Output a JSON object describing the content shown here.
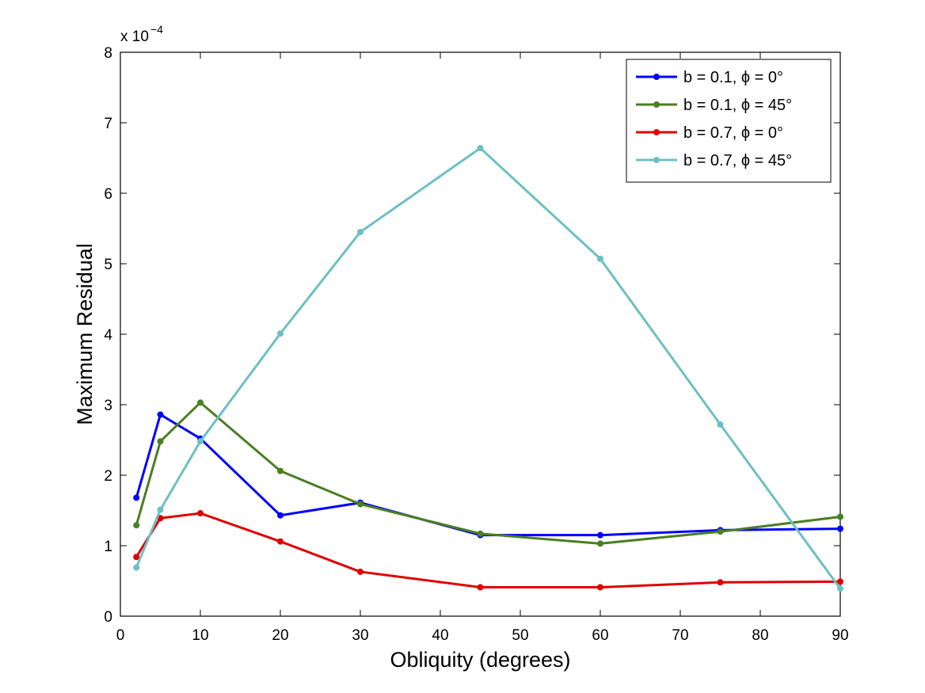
{
  "chart_data": {
    "type": "line",
    "title": "",
    "xlabel": "Obliquity (degrees)",
    "ylabel": "Maximum Residual",
    "xlim": [
      0,
      90
    ],
    "ylim": [
      0,
      8
    ],
    "xticks": [
      0,
      10,
      20,
      30,
      40,
      50,
      60,
      70,
      80,
      90
    ],
    "yticks": [
      0,
      1,
      2,
      3,
      4,
      5,
      6,
      7,
      8
    ],
    "y_multiplier_base": "x 10",
    "y_multiplier_exponent": "−4",
    "grid": false,
    "legend_position": "top-right",
    "x": [
      2,
      5,
      10,
      20,
      30,
      45,
      60,
      75,
      90
    ],
    "series": [
      {
        "name": "b = 0.1, ϕ = 0°",
        "color": "#0000ff",
        "values": [
          1.68,
          2.86,
          2.52,
          1.43,
          1.61,
          1.15,
          1.15,
          1.22,
          1.24
        ]
      },
      {
        "name": "b = 0.1, ϕ = 45°",
        "color": "#4a7f22",
        "values": [
          1.29,
          2.48,
          3.03,
          2.06,
          1.59,
          1.17,
          1.03,
          1.2,
          1.41
        ]
      },
      {
        "name": "b = 0.7, ϕ = 0°",
        "color": "#e00000",
        "values": [
          0.84,
          1.39,
          1.46,
          1.06,
          0.63,
          0.41,
          0.41,
          0.48,
          0.49
        ]
      },
      {
        "name": "b = 0.7, ϕ = 45°",
        "color": "#6cc0c4",
        "values": [
          0.69,
          1.51,
          2.48,
          4.01,
          5.45,
          6.64,
          5.07,
          2.72,
          0.39
        ]
      }
    ]
  }
}
